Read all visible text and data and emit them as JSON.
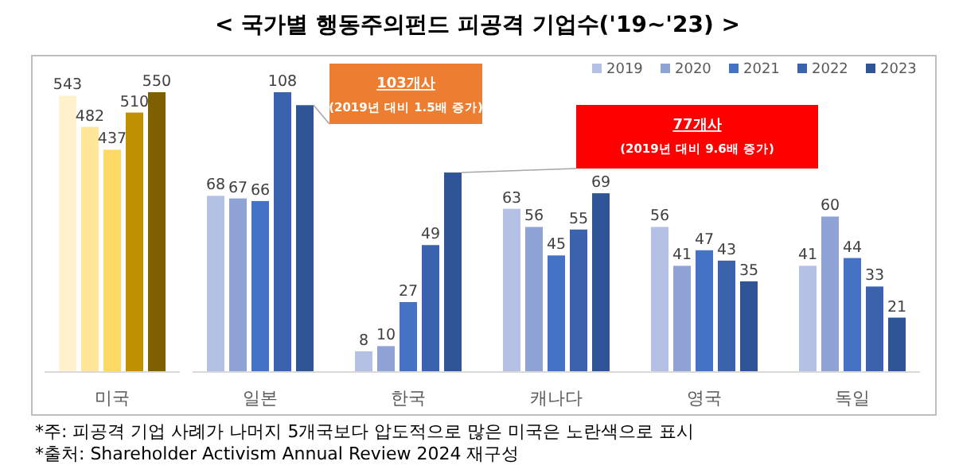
{
  "chart_data": [
    {
      "type": "bar",
      "categories": [
        "미국"
      ],
      "data_labels": true,
      "series": [
        {
          "color": "#fff2cc",
          "values": [
            543
          ]
        },
        {
          "color": "#ffe699",
          "values": [
            482
          ]
        },
        {
          "color": "#ffd966",
          "values": [
            437
          ]
        },
        {
          "color": "#bf9000",
          "values": [
            510
          ]
        },
        {
          "color": "#7f6000",
          "values": [
            550
          ]
        }
      ]
    },
    {
      "type": "bar",
      "title": "< 국가별 행동주의펀드 피공격 기업수('19~'23) >",
      "categories": [
        "일본",
        "한국",
        "캐나다",
        "영국",
        "독일"
      ],
      "legend": "top right",
      "series": [
        {
          "name": "2019",
          "color": "#b4c0e4",
          "values": [
            68,
            8,
            63,
            56,
            41
          ],
          "value_labels": [
            "68",
            "8",
            "63",
            "56",
            "41"
          ]
        },
        {
          "name": "2020",
          "color": "#8fa3d7",
          "values": [
            67,
            10,
            56,
            41,
            60
          ],
          "value_labels": [
            "67",
            "10",
            "56",
            "41",
            "60"
          ]
        },
        {
          "name": "2021",
          "color": "#4472c4",
          "values": [
            66,
            27,
            45,
            47,
            44
          ],
          "value_labels": [
            "66",
            "27",
            "45",
            "47",
            "44"
          ]
        },
        {
          "name": "2022",
          "color": "#3a62ad",
          "values": [
            108,
            49,
            55,
            43,
            33
          ],
          "value_labels": [
            "108",
            "49",
            "55",
            "43",
            "33"
          ]
        },
        {
          "name": "2023",
          "color": "#2f5597",
          "values": [
            103,
            77,
            69,
            35,
            21
          ],
          "value_labels": [
            null,
            null,
            "69",
            "35",
            "21"
          ]
        }
      ],
      "annotations": [
        "103개사",
        "(2019년 대비 1.5배 증가)",
        "77개사",
        "(2019년 대비 9.6배 증가)",
        "*주: 피공격 기업 사례가 나머지 5개국보다 압도적으로 많은 미국은 노란색으로 표시",
        "*출처: Shareholder Activism Annual Review 2024 재구성"
      ]
    }
  ]
}
